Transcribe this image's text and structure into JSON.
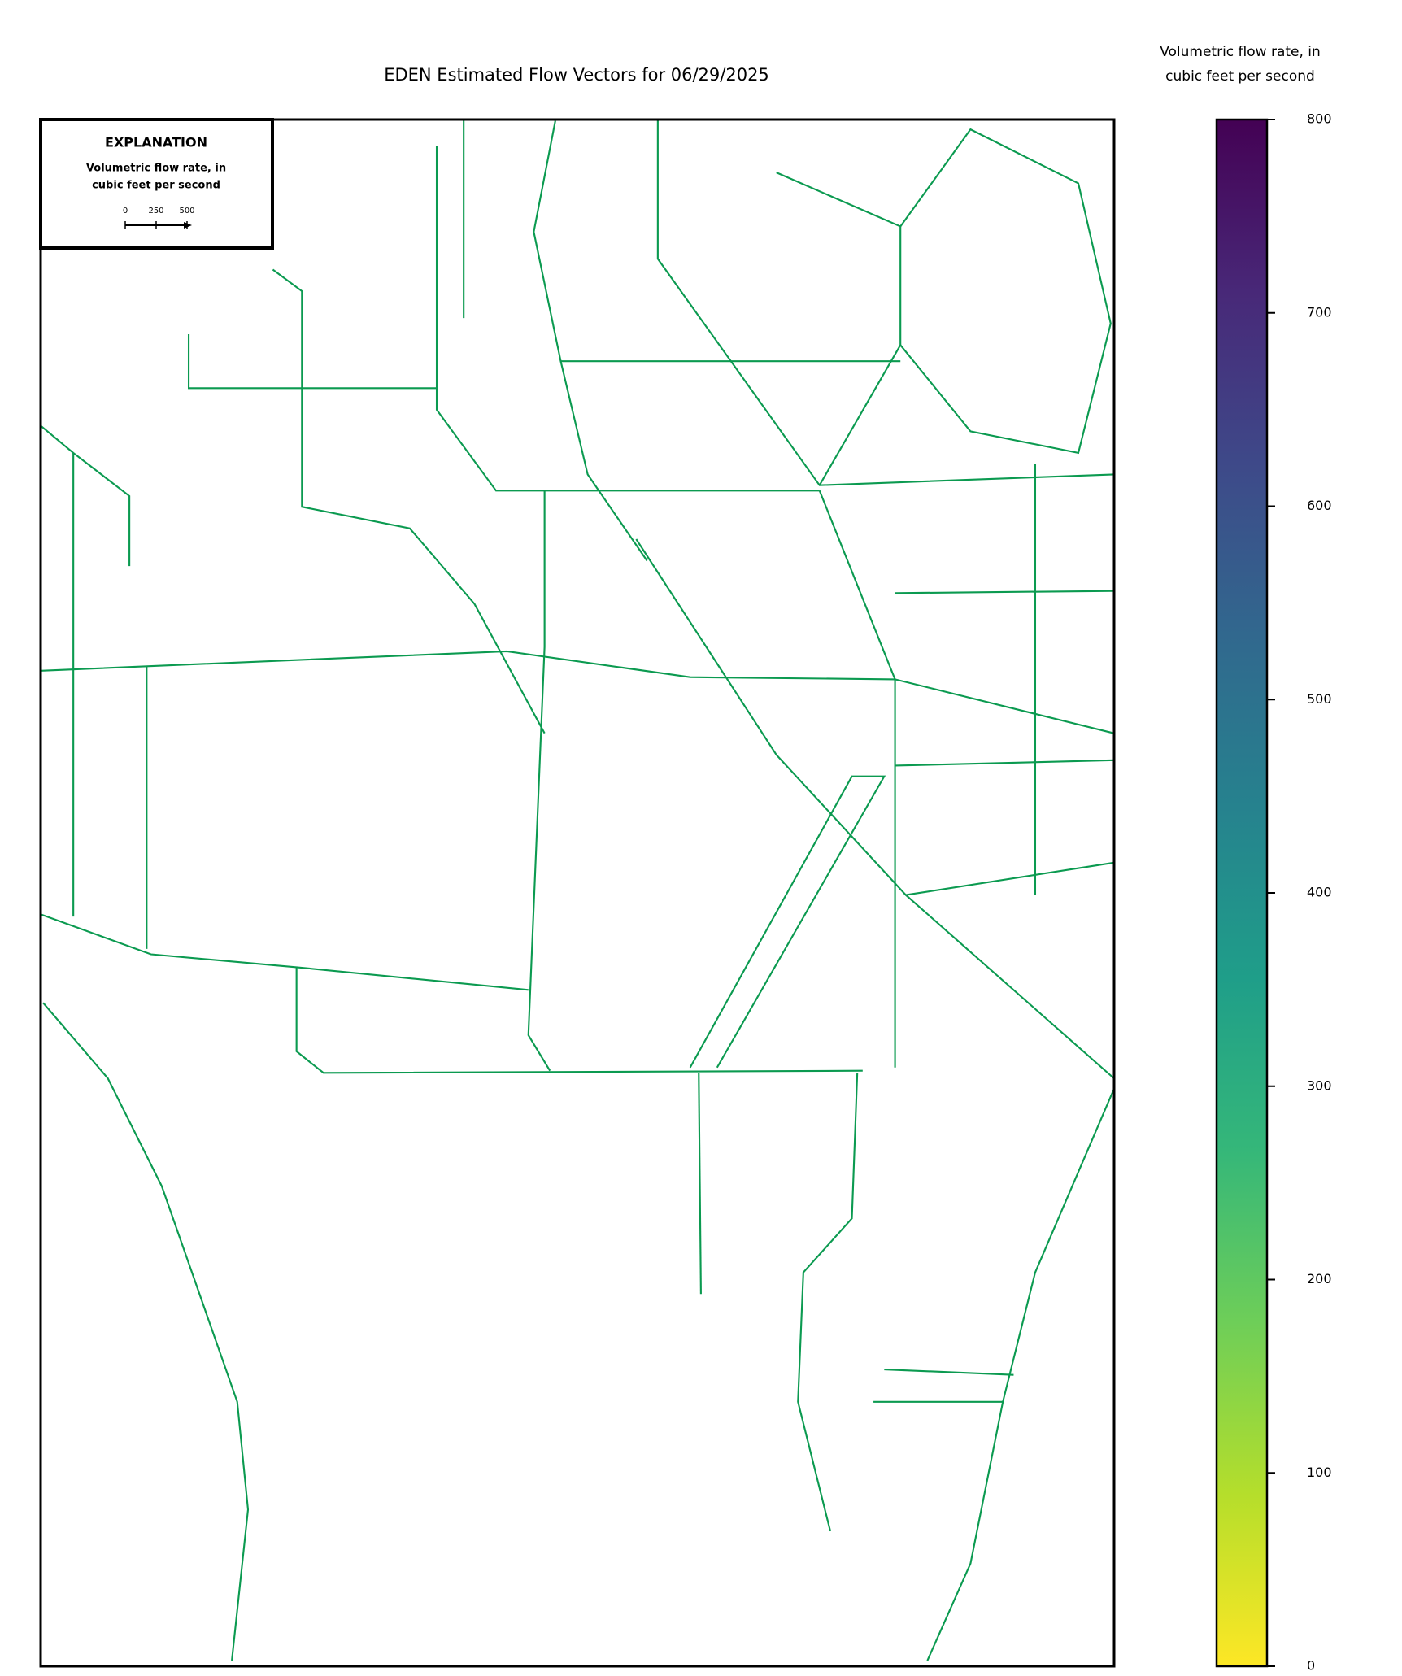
{
  "title": "EDEN Estimated Flow Vectors for 06/29/2025",
  "explanation": {
    "title": "EXPLANATION",
    "lines": [
      "Volumetric flow rate, in",
      "cubic feet per second"
    ],
    "scale_ticks": [
      0,
      250,
      500
    ]
  },
  "colorbar": {
    "label": [
      "Volumetric flow rate, in",
      "cubic feet per second"
    ],
    "lim": [
      0,
      800
    ],
    "ticks": [
      0,
      100,
      200,
      300,
      400,
      500,
      600,
      700,
      800
    ],
    "colors": [
      "#fde725",
      "#b5de2b",
      "#6ece58",
      "#35b779",
      "#1f9e89",
      "#26828e",
      "#31688e",
      "#3e4989",
      "#482878",
      "#440154"
    ]
  }
}
